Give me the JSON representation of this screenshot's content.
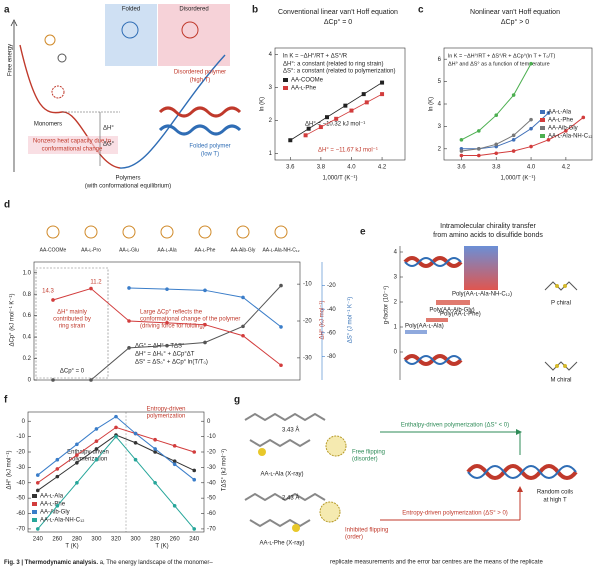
{
  "panel_a": {
    "label": "a",
    "free_energy": "Free energy",
    "folded": "Folded",
    "disordered": "Disordered",
    "monomers": "Monomers",
    "dh": "ΔH°",
    "dg": "ΔG°",
    "disordered_polymer": "Disordered polymer",
    "high_t": "(high T)",
    "nonzero": "Nonzero heat capacity due to",
    "conformational": "conformational change",
    "polymers": "Polymers",
    "equilibrium": "(with conformational equilibrium)",
    "folded_polymer": "Folded polymer",
    "low_t": "(low T)"
  },
  "chart_data": [
    {
      "type": "scatter",
      "panel": "b",
      "title": "Conventional linear van't Hoff equation",
      "subtitle": "ΔCp° = 0",
      "equation": "ln K = −ΔH°/RT + ΔS°/R",
      "notes": [
        "ΔH°: a constant (related to ring strain)",
        "ΔS°: a constant (related to polymerization)"
      ],
      "xlabel": "1,000/T (K⁻¹)",
      "ylabel": "ln (K)",
      "xlim": [
        3.5,
        4.35
      ],
      "xticks": [
        3.6,
        3.8,
        {
          "value": 4,
          "label": "4.0"
        },
        4.2
      ],
      "ylim": [
        0.8,
        4.2
      ],
      "yticks": [
        1,
        2,
        3,
        4
      ],
      "series": [
        {
          "name": "AA-COOMe",
          "color": "#222222",
          "x": [
            3.6,
            3.72,
            3.84,
            3.96,
            4.08,
            4.2
          ],
          "values": [
            1.4,
            1.75,
            2.1,
            2.45,
            2.8,
            3.15
          ]
        },
        {
          "name": "AA-ʟ-Phe",
          "color": "#d23c3c",
          "x": [
            3.7,
            3.8,
            3.9,
            4.0,
            4.1,
            4.2
          ],
          "values": [
            1.55,
            1.8,
            2.05,
            2.3,
            2.55,
            2.8
          ]
        }
      ],
      "annotations": [
        "ΔH° = −10.32 kJ mol⁻¹",
        "ΔH° = −11.67 kJ mol⁻¹"
      ]
    },
    {
      "type": "line",
      "panel": "c",
      "title": "Nonlinear van't Hoff equation",
      "subtitle": "ΔCp° > 0",
      "equation": "ln K = −ΔH°/RT + ΔS°/R + ΔCp°(ln T + T₀/T)",
      "note": "ΔH° and ΔS° as a function of temperature",
      "xlabel": "1,000/T (K⁻¹)",
      "ylabel": "ln (K)",
      "xlim": [
        3.5,
        4.35
      ],
      "xticks": [
        3.6,
        3.8,
        {
          "value": 4,
          "label": "4.0"
        },
        4.2
      ],
      "ylim": [
        1.5,
        6.5
      ],
      "yticks": [
        2,
        3,
        4,
        5,
        6
      ],
      "series": [
        {
          "name": "AA-ʟ-Ala",
          "color": "#3f6fb8",
          "x": [
            3.6,
            3.7,
            3.8,
            3.9,
            4.0,
            4.1
          ],
          "values": [
            2.0,
            2.0,
            2.1,
            2.4,
            2.9,
            3.6
          ]
        },
        {
          "name": "AA-ʟ-Phe",
          "color": "#d23c3c",
          "x": [
            3.6,
            3.7,
            3.8,
            3.9,
            4.0,
            4.1,
            4.2,
            4.3
          ],
          "values": [
            1.7,
            1.7,
            1.8,
            1.9,
            2.1,
            2.4,
            2.8,
            3.4
          ]
        },
        {
          "name": "AA-Aib-Gly",
          "color": "#777777",
          "x": [
            3.6,
            3.7,
            3.8,
            3.9,
            4.0
          ],
          "values": [
            1.9,
            2.0,
            2.2,
            2.6,
            3.3
          ]
        },
        {
          "name": "AA-ʟ-Ala-NH-C₁₂",
          "color": "#4caf50",
          "x": [
            3.6,
            3.7,
            3.8,
            3.9,
            4.0
          ],
          "values": [
            2.4,
            2.8,
            3.5,
            4.4,
            5.8
          ]
        }
      ]
    },
    {
      "type": "line",
      "panel": "d",
      "categories": [
        "AA-COOMe",
        "AA-ʟ-Pro",
        "AA-ʟ-Glu",
        "AA-ʟ-Ala",
        "AA-ʟ-Phe",
        "AA-Aib-Gly",
        "AA-ʟ-Ala-NH-C₁₂"
      ],
      "ylabel": "ΔCp° (kJ mol⁻¹ K⁻¹)",
      "y2label": "ΔH° (kJ mol⁻¹)",
      "y3label": "ΔS° (J mol⁻¹ K⁻¹)",
      "ylim": [
        0,
        1.1
      ],
      "yticks": [
        0,
        0.2,
        0.4,
        0.6,
        0.8,
        {
          "value": 1,
          "label": "1.0"
        }
      ],
      "y2lim": [
        -36,
        -4
      ],
      "y2ticks": [
        -10,
        -20,
        -30
      ],
      "y3lim": [
        -100,
        0
      ],
      "y3ticks": [
        -20,
        -40,
        -60,
        -80
      ],
      "series": [
        {
          "color": "#555555",
          "values": [
            0,
            0,
            0.3,
            0.32,
            0.35,
            0.5,
            0.88
          ]
        },
        {
          "color": "#d23c3c",
          "axis": "y2",
          "values": [
            -14.3,
            -11.2,
            -20,
            -20.5,
            -21,
            -24,
            -32
          ]
        },
        {
          "color": "#3a7dc9",
          "axis": "y3",
          "values": [
            null,
            null,
            -22,
            -23,
            -24,
            -30,
            -55
          ]
        }
      ],
      "annotations": [
        "14.3",
        "11.2",
        "ΔH° mainly",
        "contributed by",
        "ring strain",
        "Large ΔCp° reflects the",
        "conformational change of the polymer",
        "(driving force for folding)",
        "ΔCp° = 0",
        "ΔG° = ΔH° − TΔS°",
        "ΔH° = ΔH₀° + ΔCp°ΔT",
        "ΔS° = ΔS₀° + ΔCp° ln(T/T₀)"
      ]
    },
    {
      "type": "line",
      "panel": "f",
      "categories": [
        "240",
        "260",
        "280",
        "300",
        "320",
        "300",
        "280",
        "260",
        "240"
      ],
      "xlabel": "T (K)",
      "ylabel": "ΔH° (kJ mol⁻¹)",
      "y2label": "TΔS° (kJ mol⁻¹)",
      "ylim": [
        -72,
        6
      ],
      "yticks": [
        0,
        -10,
        -20,
        -30,
        -40,
        -50,
        -60,
        -70
      ],
      "y2ticks": [
        0,
        -10,
        -20,
        -30,
        -40,
        -50,
        -60,
        -70
      ],
      "series": [
        {
          "name": "AA-ʟ-Ala",
          "color": "#333333",
          "values": [
            -45,
            -36,
            -27,
            -18,
            -9,
            -14,
            -20,
            -26,
            -32
          ]
        },
        {
          "name": "AA-ʟ-Phe",
          "color": "#d23c3c",
          "values": [
            -40,
            -31,
            -22,
            -13,
            -4,
            -8,
            -12,
            -16,
            -20
          ]
        },
        {
          "name": "AA-Aib-Gly",
          "color": "#3a7dc9",
          "values": [
            -35,
            -25,
            -15,
            -5,
            3,
            -8,
            -18,
            -28,
            -38
          ]
        },
        {
          "name": "AA-ʟ-Ala-NH-C₁₂",
          "color": "#26a69a",
          "values": [
            -70,
            -55,
            -40,
            -25,
            -10,
            -25,
            -40,
            -55,
            -70
          ]
        }
      ],
      "annotations": [
        "Entropy-driven",
        "polymerization",
        "Enthalpy-driven",
        "polymerization"
      ]
    }
  ],
  "panel_e": {
    "label": "e",
    "title": [
      "Intramolecular chirality transfer",
      "from amino acids to disulfide bonds"
    ],
    "ylabel": "g-factor (10⁻⁴)",
    "yticks": [
      4,
      3,
      2,
      1,
      0
    ],
    "bars": [
      "Poly(AA-ʟ-Ala-NH-C₁₂)",
      "Poly(AA-Aib-Gly)",
      "Poly(AA-ʟ-Phe)",
      "Poly(AA-ʟ-Ala)"
    ],
    "p_chiral": "P chiral",
    "m_chiral": "M chiral"
  },
  "panel_g": {
    "label": "g",
    "ala": "AA-ʟ-Ala (X-ray)",
    "phe": "AA-ʟ-Phe (X-ray)",
    "free": "Free flipping",
    "disorder": "(disorder)",
    "inhibited": "Inhibited flipping",
    "order": "(order)",
    "enthalpy": "Enthalpy-driven polymerization (ΔS° < 0)",
    "entropy": "Entropy-driven polymerization (ΔS° > 0)",
    "random": "Random coils",
    "high_t": "at high T",
    "d1": "3.43 Å",
    "d2": "2.43 Å"
  },
  "caption": {
    "bold": "Fig. 3 | Thermodynamic analysis.",
    "text": " a, The energy landscape of the monomer–",
    "right": "replicate measurements and the error bar centres are the means of the replicate"
  }
}
